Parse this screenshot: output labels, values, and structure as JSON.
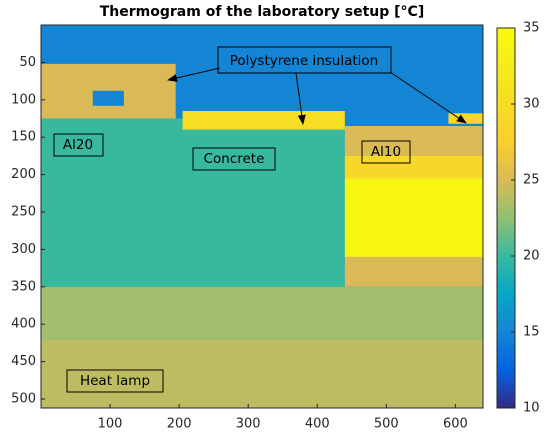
{
  "chart_data": {
    "type": "heatmap",
    "title": "Thermogram of the laboratory setup [°C]",
    "colormap": "parula",
    "xlim": [
      0,
      640
    ],
    "xticks": [
      100,
      200,
      300,
      400,
      500,
      600
    ],
    "ylim": [
      0,
      512
    ],
    "y_direction": "reverse",
    "yticks": [
      50,
      100,
      150,
      200,
      250,
      300,
      350,
      400,
      450,
      500
    ],
    "clim": [
      10,
      35
    ],
    "cticks": [
      10,
      15,
      20,
      25,
      30,
      35
    ],
    "regions": [
      {
        "x": [
          0,
          640
        ],
        "y": [
          0,
          512
        ],
        "value": 15
      },
      {
        "x": [
          0,
          195
        ],
        "y": [
          52,
          125
        ],
        "value": 25
      },
      {
        "x": [
          75,
          120
        ],
        "y": [
          88,
          108
        ],
        "value": 15
      },
      {
        "x": [
          0,
          205
        ],
        "y": [
          125,
          350
        ],
        "value": 20
      },
      {
        "x": [
          205,
          440
        ],
        "y": [
          115,
          140
        ],
        "value": 30
      },
      {
        "x": [
          205,
          440
        ],
        "y": [
          140,
          350
        ],
        "value": 20
      },
      {
        "x": [
          440,
          640
        ],
        "y": [
          135,
          350
        ],
        "value": 25
      },
      {
        "x": [
          440,
          640
        ],
        "y": [
          175,
          205
        ],
        "value": 29
      },
      {
        "x": [
          440,
          640
        ],
        "y": [
          205,
          310
        ],
        "value": 34
      },
      {
        "x": [
          590,
          640
        ],
        "y": [
          118,
          132
        ],
        "value": 29
      },
      {
        "x": [
          0,
          640
        ],
        "y": [
          350,
          420
        ],
        "value": 23
      },
      {
        "x": [
          0,
          640
        ],
        "y": [
          420,
          512
        ],
        "value": 24
      }
    ],
    "annotations": {
      "insulation": "Polystyrene insulation",
      "al20": "Al20",
      "concrete": "Concrete",
      "al10": "Al10",
      "lamp": "Heat lamp"
    }
  }
}
